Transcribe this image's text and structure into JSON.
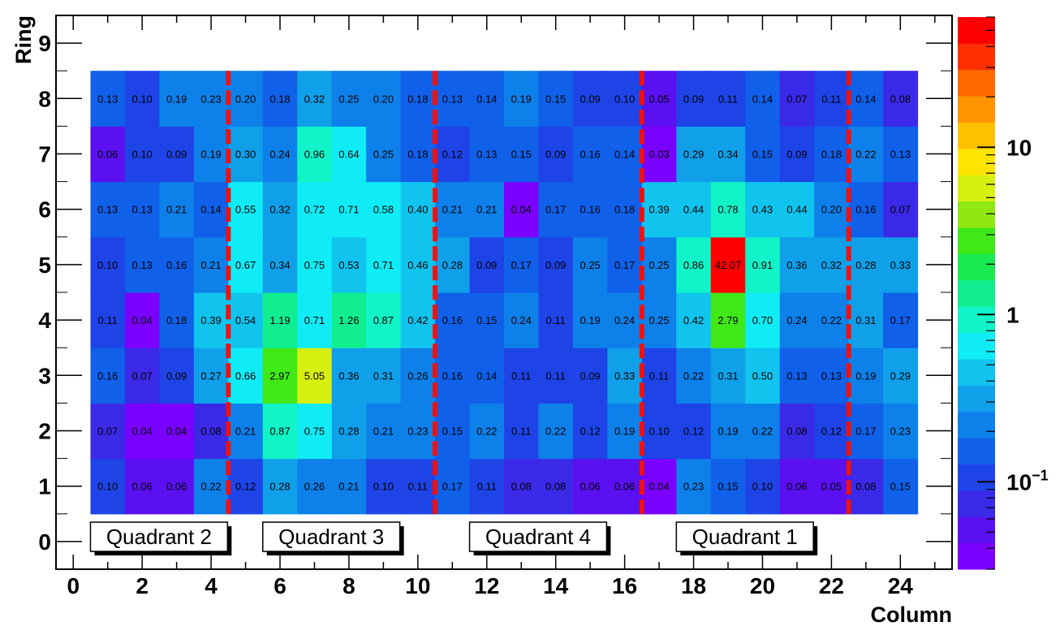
{
  "chart_data": {
    "type": "heatmap",
    "title": "",
    "xlabel": "Column",
    "ylabel": "Ring",
    "xlim": [
      -0.5,
      25.5
    ],
    "ylim": [
      -0.5,
      9.5
    ],
    "x_ticks": [
      "0",
      "2",
      "4",
      "6",
      "8",
      "10",
      "12",
      "14",
      "16",
      "18",
      "20",
      "22",
      "24"
    ],
    "y_ticks": [
      "0",
      "1",
      "2",
      "3",
      "4",
      "5",
      "6",
      "7",
      "8",
      "9"
    ],
    "colorbar": {
      "scale": "log",
      "min": 0.03,
      "max": 60,
      "tick_labels": [
        "10",
        "1",
        "10^-1"
      ],
      "tick_values": [
        10,
        1,
        0.1
      ]
    },
    "columns": [
      1,
      2,
      3,
      4,
      5,
      6,
      7,
      8,
      9,
      10,
      11,
      12,
      13,
      14,
      15,
      16,
      17,
      18,
      19,
      20,
      21,
      22,
      23,
      24
    ],
    "rings": [
      1,
      2,
      3,
      4,
      5,
      6,
      7,
      8
    ],
    "labels": {
      "1": [
        "0.10",
        "0.06",
        "0.06",
        "0.22",
        "0.12",
        "0.28",
        "0.26",
        "0.21",
        "0.10",
        "0.11",
        "0.17",
        "0.11",
        "0.08",
        "0.08",
        "0.06",
        "0.06",
        "0.04",
        "0.23",
        "0.15",
        "0.10",
        "0.06",
        "0.05",
        "0.08",
        "0.15"
      ],
      "2": [
        "0.07",
        "0.04",
        "0.04",
        "0.08",
        "0.21",
        "0.87",
        "0.75",
        "0.28",
        "0.21",
        "0.23",
        "0.15",
        "0.22",
        "0.11",
        "0.22",
        "0.12",
        "0.19",
        "0.10",
        "0.12",
        "0.19",
        "0.22",
        "0.08",
        "0.12",
        "0.17",
        "0.23"
      ],
      "3": [
        "0.16",
        "0.07",
        "0.09",
        "0.27",
        "0.66",
        "2.97",
        "5.05",
        "0.36",
        "0.31",
        "0.26",
        "0.16",
        "0.14",
        "0.11",
        "0.11",
        "0.09",
        "0.33",
        "0.11",
        "0.22",
        "0.31",
        "0.50",
        "0.13",
        "0.13",
        "0.19",
        "0.29"
      ],
      "4": [
        "0.11",
        "0.04",
        "0.18",
        "0.39",
        "0.54",
        "1.19",
        "0.71",
        "1.26",
        "0.87",
        "0.42",
        "0.16",
        "0.15",
        "0.24",
        "0.11",
        "0.19",
        "0.24",
        "0.25",
        "0.42",
        "2.79",
        "0.70",
        "0.24",
        "0.22",
        "0.31",
        "0.17"
      ],
      "5": [
        "0.10",
        "0.13",
        "0.16",
        "0.21",
        "0.67",
        "0.34",
        "0.75",
        "0.53",
        "0.71",
        "0.46",
        "0.28",
        "0.09",
        "0.17",
        "0.09",
        "0.25",
        "0.17",
        "0.25",
        "0.86",
        "42.07",
        "0.91",
        "0.36",
        "0.32",
        "0.28",
        "0.33"
      ],
      "6": [
        "0.13",
        "0.13",
        "0.21",
        "0.14",
        "0.55",
        "0.32",
        "0.72",
        "0.71",
        "0.58",
        "0.40",
        "0.21",
        "0.21",
        "0.04",
        "0.17",
        "0.16",
        "0.18",
        "0.39",
        "0.44",
        "0.78",
        "0.43",
        "0.44",
        "0.20",
        "0.16",
        "0.07"
      ],
      "7": [
        "0.06",
        "0.10",
        "0.09",
        "0.19",
        "0.30",
        "0.24",
        "0.96",
        "0.64",
        "0.25",
        "0.18",
        "0.12",
        "0.13",
        "0.15",
        "0.09",
        "0.16",
        "0.14",
        "0.03",
        "0.29",
        "0.34",
        "0.15",
        "0.09",
        "0.18",
        "0.22",
        "0.13"
      ],
      "8": [
        "0.13",
        "0.10",
        "0.19",
        "0.23",
        "0.20",
        "0.18",
        "0.32",
        "0.25",
        "0.20",
        "0.18",
        "0.13",
        "0.14",
        "0.19",
        "0.15",
        "0.09",
        "0.10",
        "0.05",
        "0.09",
        "0.11",
        "0.14",
        "0.07",
        "0.11",
        "0.14",
        "0.08"
      ]
    },
    "quadrant_boundaries": [
      4.5,
      10.5,
      16.5,
      22.5
    ],
    "boundary_color": "#ee1111",
    "quadrants": [
      {
        "label": "Quadrant 2",
        "x_start": 0.5
      },
      {
        "label": "Quadrant 3",
        "x_start": 5.5
      },
      {
        "label": "Quadrant 4",
        "x_start": 11.5
      },
      {
        "label": "Quadrant 1",
        "x_start": 17.5
      }
    ],
    "palette": [
      "#7a00ff",
      "#5a10f0",
      "#3a2ae8",
      "#1e44e8",
      "#1060ea",
      "#0e80ea",
      "#10a0ea",
      "#10c4ee",
      "#10ecf6",
      "#10f4c8",
      "#10ee90",
      "#18ea50",
      "#40e818",
      "#90e810",
      "#d8f010",
      "#ffe400",
      "#ffc000",
      "#ff9400",
      "#ff6a00",
      "#ff3000",
      "#ff0000"
    ]
  }
}
